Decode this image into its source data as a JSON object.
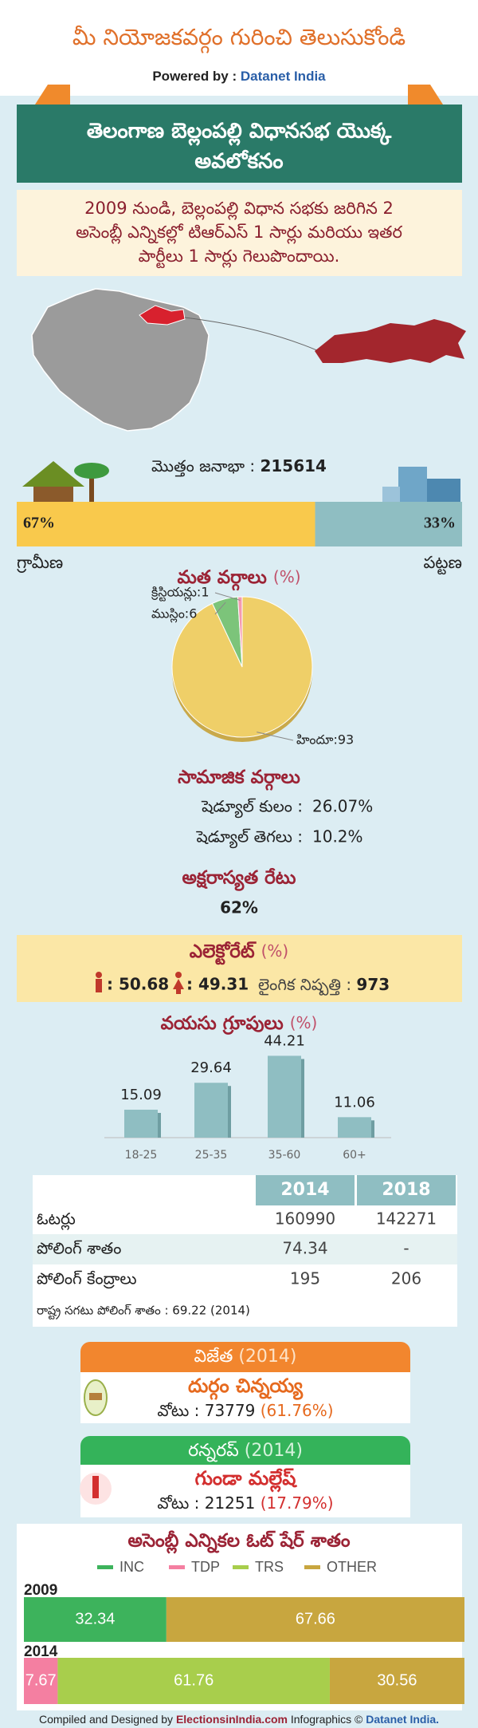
{
  "header": {
    "title": "మీ నియోజకవర్గం గురించి తెలుసుకోండి",
    "powered_by": "Powered by :",
    "brand": "Datanet India"
  },
  "banner": {
    "lines": [
      "తెలంగాణ బెల్లంపల్లి విధానసభ యొక్క",
      "అవలోకనం"
    ]
  },
  "summary": {
    "lines": [
      "2009 నుండి, బెల్లంపల్లి విధాన సభకు జరిగిన 2",
      "అసెంబ్లీ ఎన్నికల్లో టిఆర్ఎస్ 1 సార్లు మరియు ఇతర",
      "పార్టీలు 1 సార్లు గెలుపొందాయి."
    ]
  },
  "population": {
    "label": "మొత్తం జనాభా :",
    "value": 215614,
    "rural": {
      "label": "గ్రామీణ",
      "value": 67,
      "value_label": "67%",
      "color": "#f9c94c"
    },
    "urban": {
      "label": "పట్టణ",
      "value": 33,
      "value_label": "33%",
      "color": "#8fbec2"
    }
  },
  "religion": {
    "type": "pie",
    "title": "మత వర్గాలు",
    "unit": "(%)",
    "slices": [
      {
        "label": "హిందూ:93",
        "value": 93,
        "color": "#efcf68"
      },
      {
        "label": "ముస్లిం:6",
        "value": 6,
        "color": "#7cc47a"
      },
      {
        "label": "క్రిస్టియన్లు:1",
        "value": 1,
        "color": "#f49ab0"
      }
    ]
  },
  "social": {
    "title": "సామాజిక వర్గాలు",
    "rows": [
      {
        "label": "షెడ్యూల్ కులం :",
        "value": 26.07,
        "value_label": "26.07%"
      },
      {
        "label": "షెడ్యూల్ తెగలు :",
        "value": 10.2,
        "value_label": "10.2%"
      }
    ]
  },
  "literacy": {
    "title": "అక్షరాస్యత రేటు",
    "value": 62,
    "value_label": "62%"
  },
  "electorate": {
    "title": "ఎలెక్టోరేట్",
    "unit": "(%)",
    "male": {
      "value": 50.68,
      "value_label": ": 50.68"
    },
    "female": {
      "value": 49.31,
      "value_label": ": 49.31"
    },
    "sex_ratio": {
      "label": "లైంగిక నిష్పత్తి :",
      "value": 973
    }
  },
  "age_groups": {
    "type": "bar",
    "title": "వయసు గ్రూపులు",
    "unit": "(%)",
    "categories": [
      "18-25",
      "25-35",
      "35-60",
      "60+"
    ],
    "values": [
      15.09,
      29.64,
      44.21,
      11.06
    ],
    "color": "#8fbec2",
    "ylim": [
      0,
      50
    ]
  },
  "table": {
    "columns": [
      "2014",
      "2018"
    ],
    "rows": [
      {
        "label": "ఓటర్లు",
        "values": [
          160990,
          142271
        ]
      },
      {
        "label": "పోలింగ్ శాతం",
        "values": [
          74.34,
          "-"
        ]
      },
      {
        "label": "పోలింగ్ కేంద్రాలు",
        "values": [
          195,
          206
        ]
      }
    ],
    "note": "రాష్ట్ర సగటు పోలింగ్ శాతం : 69.22 (2014)"
  },
  "winner": {
    "heading": "విజేత",
    "year": "(2014)",
    "name": "దుర్గం చిన్నయ్య",
    "votes": "వోటు : 73779",
    "share": "(61.76%)"
  },
  "runner_up": {
    "heading": "రన్నరప్",
    "year": "(2014)",
    "name": "గుండా మల్లేష్",
    "votes": "వోటు : 21251",
    "share": "(17.79%)"
  },
  "vote_share": {
    "type": "stacked_bar",
    "title": "అసెంబ్లీ ఎన్నికల ఓట్ షేర్ శాతం",
    "categories": [
      "2009",
      "2014"
    ],
    "xlim": [
      0,
      100
    ],
    "series": [
      {
        "name": "INC",
        "color": "#3db35c",
        "values": [
          32.34,
          null
        ]
      },
      {
        "name": "TDP",
        "color": "#f47fa1",
        "values": [
          null,
          7.67
        ]
      },
      {
        "name": "TRS",
        "color": "#a8ce4c",
        "values": [
          null,
          61.76
        ]
      },
      {
        "name": "OTHER",
        "color": "#c8a63f",
        "values": [
          67.66,
          30.56
        ]
      }
    ]
  },
  "footer": {
    "compiled": "Compiled and Designed by",
    "site": "ElectionsinIndia.com",
    "infographics": "Infographics ©",
    "brand": "Datanet India."
  }
}
